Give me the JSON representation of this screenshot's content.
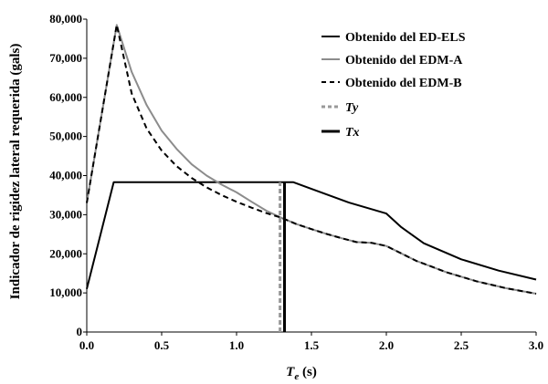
{
  "chart_data": {
    "type": "line",
    "xlabel": "T",
    "xlabel_sub": "e",
    "xlabel_unit": " (s)",
    "ylabel": "Indicador de rigidez lateral requerida (gals)",
    "xlim": [
      0,
      3
    ],
    "ylim": [
      0,
      80000
    ],
    "xticks": [
      0,
      0.5,
      1,
      1.5,
      2,
      2.5,
      3
    ],
    "xtick_labels": [
      "0.0",
      "0.5",
      "1.0",
      "1.5",
      "2.0",
      "2.5",
      "3.0"
    ],
    "yticks": [
      0,
      10000,
      20000,
      30000,
      40000,
      50000,
      60000,
      70000,
      80000
    ],
    "ytick_labels": [
      "0",
      "10,000",
      "20,000",
      "30,000",
      "40,000",
      "50,000",
      "60,000",
      "70,000",
      "80,000"
    ],
    "grid": false,
    "legend_position": "top-right",
    "series": [
      {
        "name": "Obtenido del ED-ELS",
        "color": "#000000",
        "style": "solid",
        "x": [
          0,
          0.18,
          1.32,
          1.38,
          1.5,
          1.75,
          2.0,
          2.1,
          2.25,
          2.5,
          2.75,
          3.0
        ],
        "y": [
          11000,
          38300,
          38300,
          38300,
          36600,
          33100,
          30300,
          26800,
          22700,
          18600,
          15700,
          13400
        ]
      },
      {
        "name": "Obtenido del EDM-A",
        "color": "#8c8c8c",
        "style": "solid",
        "x": [
          0,
          0.2,
          0.3,
          0.4,
          0.5,
          0.6,
          0.7,
          0.8,
          0.9,
          1.0,
          1.1,
          1.2,
          1.3,
          1.4,
          1.5,
          1.6,
          1.7,
          1.8,
          1.9,
          2.0,
          2.2,
          2.4,
          2.6,
          2.8,
          3.0
        ],
        "y": [
          33000,
          78500,
          66500,
          58000,
          51500,
          46800,
          42900,
          40000,
          37700,
          35700,
          33300,
          31000,
          29200,
          27600,
          26300,
          25100,
          24000,
          23000,
          22800,
          22000,
          18200,
          15300,
          13000,
          11200,
          9800
        ]
      },
      {
        "name": "Obtenido del EDM-B",
        "color": "#000000",
        "style": "dashed",
        "x": [
          0,
          0.2,
          0.3,
          0.4,
          0.5,
          0.6,
          0.7,
          0.8,
          0.9,
          1.0,
          1.1,
          1.2,
          1.3,
          1.4,
          1.5,
          1.6,
          1.7,
          1.8,
          1.9,
          2.0,
          2.2,
          2.4,
          2.6,
          2.8,
          3.0
        ],
        "y": [
          33000,
          78500,
          61000,
          52000,
          46400,
          42400,
          39400,
          37000,
          35000,
          33300,
          31800,
          30400,
          29200,
          27600,
          26300,
          25100,
          24000,
          23000,
          22800,
          22000,
          18200,
          15300,
          13000,
          11200,
          9800
        ]
      },
      {
        "name": "Ty",
        "color": "#999999",
        "style": "vline-dashed",
        "x": [
          1.29,
          1.29
        ],
        "y": [
          0,
          38300
        ]
      },
      {
        "name": "Tx",
        "color": "#000000",
        "style": "vline-solid",
        "x": [
          1.32,
          1.32
        ],
        "y": [
          0,
          38300
        ]
      }
    ]
  }
}
